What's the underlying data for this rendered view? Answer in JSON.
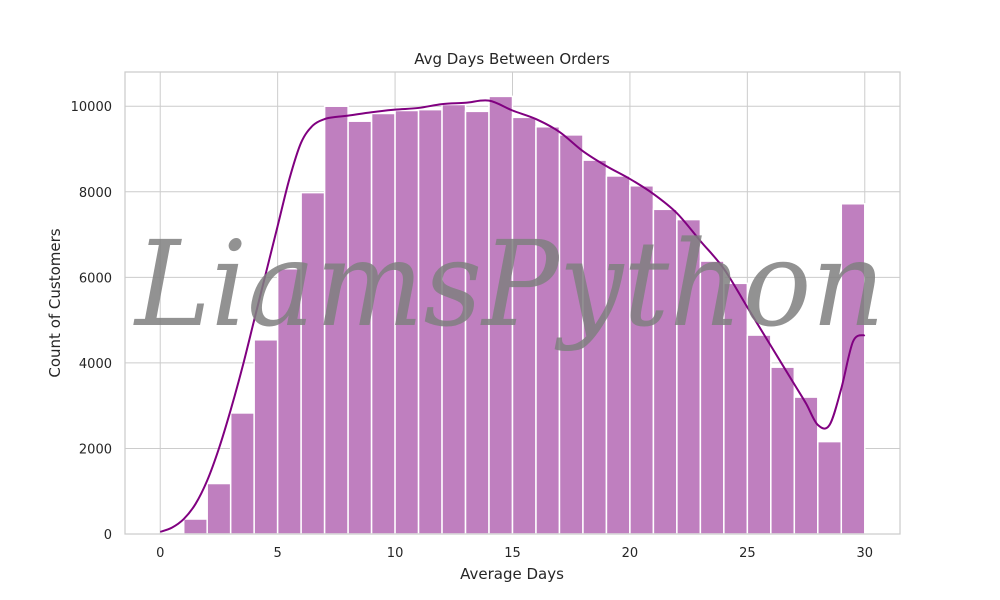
{
  "chart_data": {
    "type": "bar",
    "title": "Avg Days Between Orders",
    "xlabel": "Average Days",
    "ylabel": "Count of Customers",
    "xlim": [
      -1.5,
      31.5
    ],
    "ylim": [
      0,
      10800
    ],
    "xticks": [
      0,
      5,
      10,
      15,
      20,
      25,
      30
    ],
    "yticks": [
      0,
      2000,
      4000,
      6000,
      8000,
      10000
    ],
    "grid": true,
    "bin_edges": [
      0,
      1,
      2,
      3,
      4,
      5,
      6,
      7,
      8,
      9,
      10,
      11,
      12,
      13,
      14,
      15,
      16,
      17,
      18,
      19,
      20,
      21,
      22,
      23,
      24,
      25,
      26,
      27,
      28,
      29,
      30
    ],
    "values": [
      0,
      350,
      1180,
      2830,
      4540,
      6200,
      7980,
      10000,
      9650,
      9830,
      9900,
      9920,
      10040,
      9880,
      10230,
      9740,
      9520,
      9330,
      8740,
      8370,
      8140,
      7590,
      7350,
      6380,
      5860,
      4650,
      3900,
      3200,
      2160,
      7720
    ],
    "bar_color": "#bf7fbf",
    "kde": {
      "color": "#800080",
      "x": [
        0,
        0.5,
        1,
        1.5,
        2,
        2.5,
        3,
        3.5,
        4,
        4.5,
        5,
        5.5,
        6,
        6.5,
        7,
        7.5,
        8,
        9,
        10,
        11,
        12,
        13,
        14,
        15,
        16,
        17,
        18,
        19,
        20,
        21,
        22,
        23,
        24,
        25,
        26,
        27,
        27.5,
        28,
        28.5,
        29,
        29.5,
        30
      ],
      "y": [
        50,
        150,
        350,
        700,
        1250,
        2000,
        2900,
        3900,
        5000,
        6100,
        7200,
        8300,
        9150,
        9550,
        9700,
        9750,
        9780,
        9860,
        9920,
        9960,
        10050,
        10080,
        10130,
        9900,
        9700,
        9400,
        8950,
        8600,
        8300,
        7950,
        7500,
        6850,
        6200,
        5300,
        4400,
        3500,
        3050,
        2550,
        2550,
        3400,
        4500,
        4650
      ]
    }
  },
  "watermark": "LiamsPython"
}
